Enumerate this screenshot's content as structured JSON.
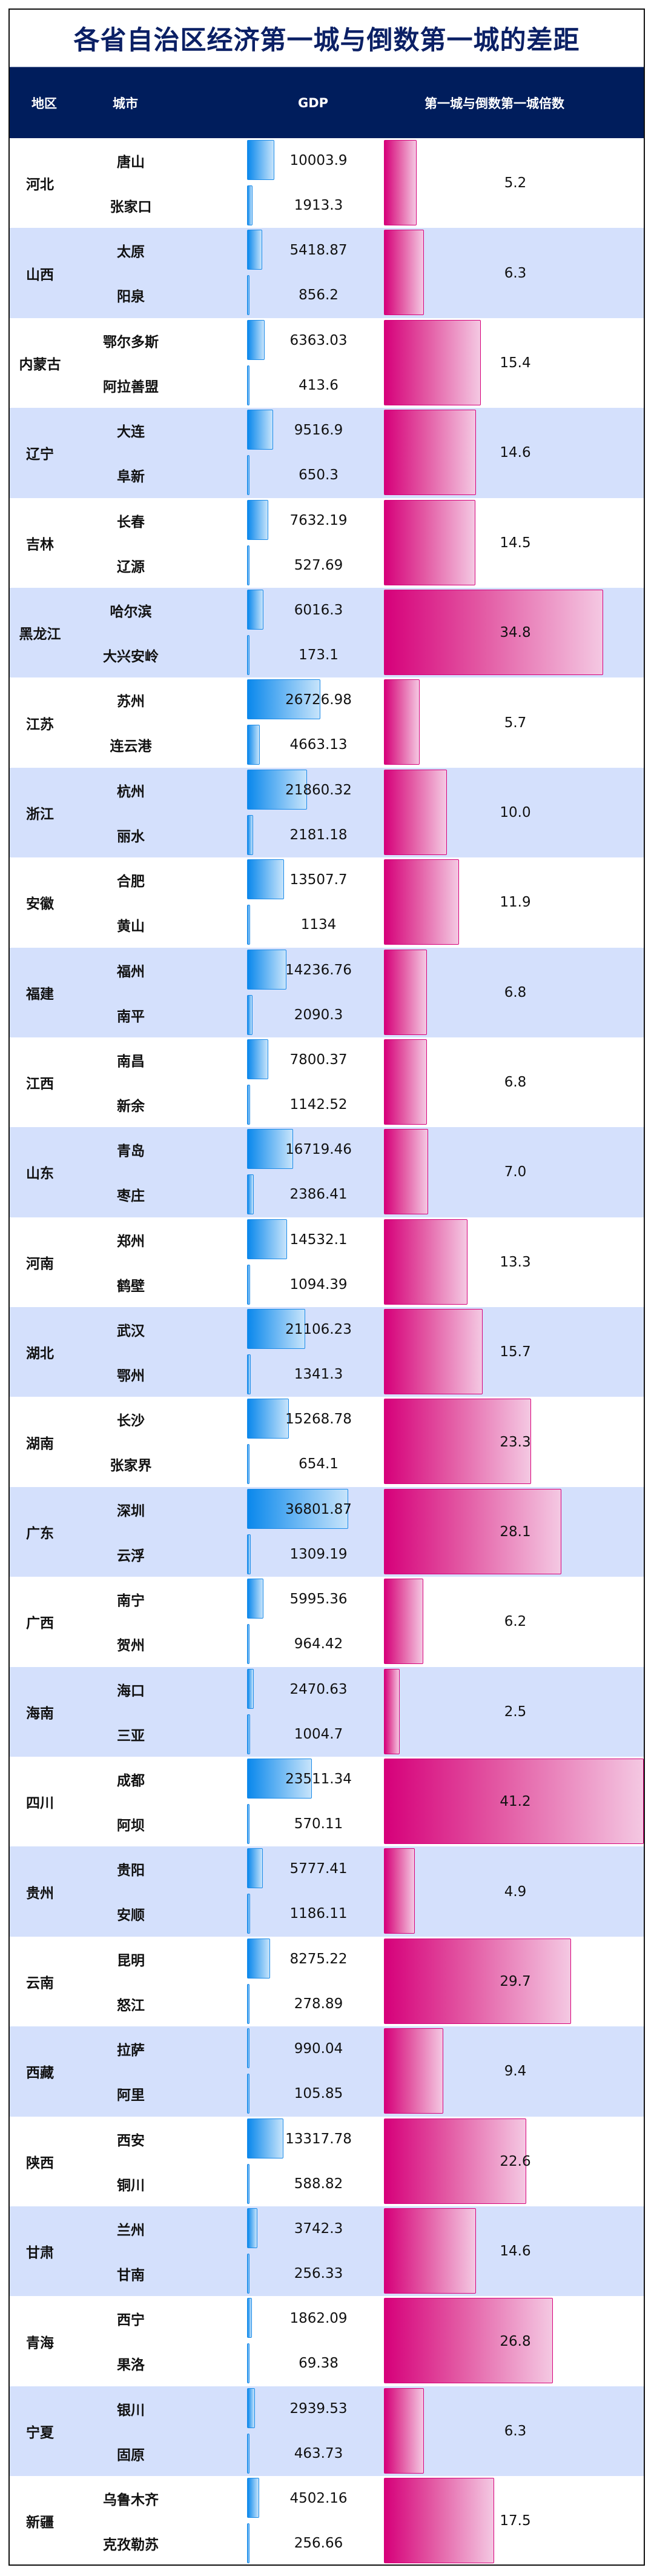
{
  "title": "各省自治区经济第一城与倒数第一城的差距",
  "header": {
    "region": "地区",
    "city": "城市",
    "gdp": "GDP",
    "ratio": "第一城与倒数第一城倍数"
  },
  "colors": {
    "title": "#0b2065",
    "header_bg": "#001d5c",
    "alt_row_bg": "#d4e0fc",
    "gdp_bar_start": "#0a88ec",
    "gdp_bar_end": "#c7e4fb",
    "ratio_bar_start": "#d6007a",
    "ratio_bar_end": "#f4c8e2"
  },
  "rows": [
    {
      "province": "河北",
      "top_city": "唐山",
      "top_gdp": "10003.9",
      "bottom_city": "张家口",
      "bottom_gdp": "1913.3",
      "ratio": "5.2"
    },
    {
      "province": "山西",
      "top_city": "太原",
      "top_gdp": "5418.87",
      "bottom_city": "阳泉",
      "bottom_gdp": "856.2",
      "ratio": "6.3"
    },
    {
      "province": "内蒙古",
      "top_city": "鄂尔多斯",
      "top_gdp": "6363.03",
      "bottom_city": "阿拉善盟",
      "bottom_gdp": "413.6",
      "ratio": "15.4"
    },
    {
      "province": "辽宁",
      "top_city": "大连",
      "top_gdp": "9516.9",
      "bottom_city": "阜新",
      "bottom_gdp": "650.3",
      "ratio": "14.6"
    },
    {
      "province": "吉林",
      "top_city": "长春",
      "top_gdp": "7632.19",
      "bottom_city": "辽源",
      "bottom_gdp": "527.69",
      "ratio": "14.5"
    },
    {
      "province": "黑龙江",
      "top_city": "哈尔滨",
      "top_gdp": "6016.3",
      "bottom_city": "大兴安岭",
      "bottom_gdp": "173.1",
      "ratio": "34.8"
    },
    {
      "province": "江苏",
      "top_city": "苏州",
      "top_gdp": "26726.98",
      "bottom_city": "连云港",
      "bottom_gdp": "4663.13",
      "ratio": "5.7"
    },
    {
      "province": "浙江",
      "top_city": "杭州",
      "top_gdp": "21860.32",
      "bottom_city": "丽水",
      "bottom_gdp": "2181.18",
      "ratio": "10.0"
    },
    {
      "province": "安徽",
      "top_city": "合肥",
      "top_gdp": "13507.7",
      "bottom_city": "黄山",
      "bottom_gdp": "1134",
      "ratio": "11.9"
    },
    {
      "province": "福建",
      "top_city": "福州",
      "top_gdp": "14236.76",
      "bottom_city": "南平",
      "bottom_gdp": "2090.3",
      "ratio": "6.8"
    },
    {
      "province": "江西",
      "top_city": "南昌",
      "top_gdp": "7800.37",
      "bottom_city": "新余",
      "bottom_gdp": "1142.52",
      "ratio": "6.8"
    },
    {
      "province": "山东",
      "top_city": "青岛",
      "top_gdp": "16719.46",
      "bottom_city": "枣庄",
      "bottom_gdp": "2386.41",
      "ratio": "7.0"
    },
    {
      "province": "河南",
      "top_city": "郑州",
      "top_gdp": "14532.1",
      "bottom_city": "鹤壁",
      "bottom_gdp": "1094.39",
      "ratio": "13.3"
    },
    {
      "province": "湖北",
      "top_city": "武汉",
      "top_gdp": "21106.23",
      "bottom_city": "鄂州",
      "bottom_gdp": "1341.3",
      "ratio": "15.7"
    },
    {
      "province": "湖南",
      "top_city": "长沙",
      "top_gdp": "15268.78",
      "bottom_city": "张家界",
      "bottom_gdp": "654.1",
      "ratio": "23.3"
    },
    {
      "province": "广东",
      "top_city": "深圳",
      "top_gdp": "36801.87",
      "bottom_city": "云浮",
      "bottom_gdp": "1309.19",
      "ratio": "28.1"
    },
    {
      "province": "广西",
      "top_city": "南宁",
      "top_gdp": "5995.36",
      "bottom_city": "贺州",
      "bottom_gdp": "964.42",
      "ratio": "6.2"
    },
    {
      "province": "海南",
      "top_city": "海口",
      "top_gdp": "2470.63",
      "bottom_city": "三亚",
      "bottom_gdp": "1004.7",
      "ratio": "2.5"
    },
    {
      "province": "四川",
      "top_city": "成都",
      "top_gdp": "23511.34",
      "bottom_city": "阿坝",
      "bottom_gdp": "570.11",
      "ratio": "41.2"
    },
    {
      "province": "贵州",
      "top_city": "贵阳",
      "top_gdp": "5777.41",
      "bottom_city": "安顺",
      "bottom_gdp": "1186.11",
      "ratio": "4.9"
    },
    {
      "province": "云南",
      "top_city": "昆明",
      "top_gdp": "8275.22",
      "bottom_city": "怒江",
      "bottom_gdp": "278.89",
      "ratio": "29.7"
    },
    {
      "province": "西藏",
      "top_city": "拉萨",
      "top_gdp": "990.04",
      "bottom_city": "阿里",
      "bottom_gdp": "105.85",
      "ratio": "9.4"
    },
    {
      "province": "陕西",
      "top_city": "西安",
      "top_gdp": "13317.78",
      "bottom_city": "铜川",
      "bottom_gdp": "588.82",
      "ratio": "22.6"
    },
    {
      "province": "甘肃",
      "top_city": "兰州",
      "top_gdp": "3742.3",
      "bottom_city": "甘南",
      "bottom_gdp": "256.33",
      "ratio": "14.6"
    },
    {
      "province": "青海",
      "top_city": "西宁",
      "top_gdp": "1862.09",
      "bottom_city": "果洛",
      "bottom_gdp": "69.38",
      "ratio": "26.8"
    },
    {
      "province": "宁夏",
      "top_city": "银川",
      "top_gdp": "2939.53",
      "bottom_city": "固原",
      "bottom_gdp": "463.73",
      "ratio": "6.3"
    },
    {
      "province": "新疆",
      "top_city": "乌鲁木齐",
      "top_gdp": "4502.16",
      "bottom_city": "克孜勒苏",
      "bottom_gdp": "256.66",
      "ratio": "17.5"
    }
  ],
  "chart_data": {
    "type": "table",
    "title": "各省自治区经济第一城与倒数第一城的差距",
    "columns": [
      "地区",
      "城市",
      "GDP",
      "第一城与倒数第一城倍数"
    ],
    "categories": [
      "河北",
      "山西",
      "内蒙古",
      "辽宁",
      "吉林",
      "黑龙江",
      "江苏",
      "浙江",
      "安徽",
      "福建",
      "江西",
      "山东",
      "河南",
      "湖北",
      "湖南",
      "广东",
      "广西",
      "海南",
      "四川",
      "贵州",
      "云南",
      "西藏",
      "陕西",
      "甘肃",
      "青海",
      "宁夏",
      "新疆"
    ],
    "series": [
      {
        "name": "第一城",
        "cities": [
          "唐山",
          "太原",
          "鄂尔多斯",
          "大连",
          "长春",
          "哈尔滨",
          "苏州",
          "杭州",
          "合肥",
          "福州",
          "南昌",
          "青岛",
          "郑州",
          "武汉",
          "长沙",
          "深圳",
          "南宁",
          "海口",
          "成都",
          "贵阳",
          "昆明",
          "拉萨",
          "西安",
          "兰州",
          "西宁",
          "银川",
          "乌鲁木齐"
        ],
        "values": [
          10003.9,
          5418.87,
          6363.03,
          9516.9,
          7632.19,
          6016.3,
          26726.98,
          21860.32,
          13507.7,
          14236.76,
          7800.37,
          16719.46,
          14532.1,
          21106.23,
          15268.78,
          36801.87,
          5995.36,
          2470.63,
          23511.34,
          5777.41,
          8275.22,
          990.04,
          13317.78,
          3742.3,
          1862.09,
          2939.53,
          4502.16
        ]
      },
      {
        "name": "倒数第一城",
        "cities": [
          "张家口",
          "阳泉",
          "阿拉善盟",
          "阜新",
          "辽源",
          "大兴安岭",
          "连云港",
          "丽水",
          "黄山",
          "南平",
          "新余",
          "枣庄",
          "鹤壁",
          "鄂州",
          "张家界",
          "云浮",
          "贺州",
          "三亚",
          "阿坝",
          "安顺",
          "怒江",
          "阿里",
          "铜川",
          "甘南",
          "果洛",
          "固原",
          "克孜勒苏"
        ],
        "values": [
          1913.3,
          856.2,
          413.6,
          650.3,
          527.69,
          173.1,
          4663.13,
          2181.18,
          1134,
          2090.3,
          1142.52,
          2386.41,
          1094.39,
          1341.3,
          654.1,
          1309.19,
          964.42,
          1004.7,
          570.11,
          1186.11,
          278.89,
          105.85,
          588.82,
          256.33,
          69.38,
          463.73,
          256.66
        ]
      },
      {
        "name": "第一城与倒数第一城倍数",
        "values": [
          5.2,
          6.3,
          15.4,
          14.6,
          14.5,
          34.8,
          5.7,
          10.0,
          11.9,
          6.8,
          6.8,
          7.0,
          13.3,
          15.7,
          23.3,
          28.1,
          6.2,
          2.5,
          41.2,
          4.9,
          29.7,
          9.4,
          22.6,
          14.6,
          26.8,
          6.3,
          17.5
        ]
      }
    ],
    "gdp_bar_max": 36801.87,
    "ratio_bar_max": 41.2,
    "grid": false,
    "legend": "none"
  }
}
